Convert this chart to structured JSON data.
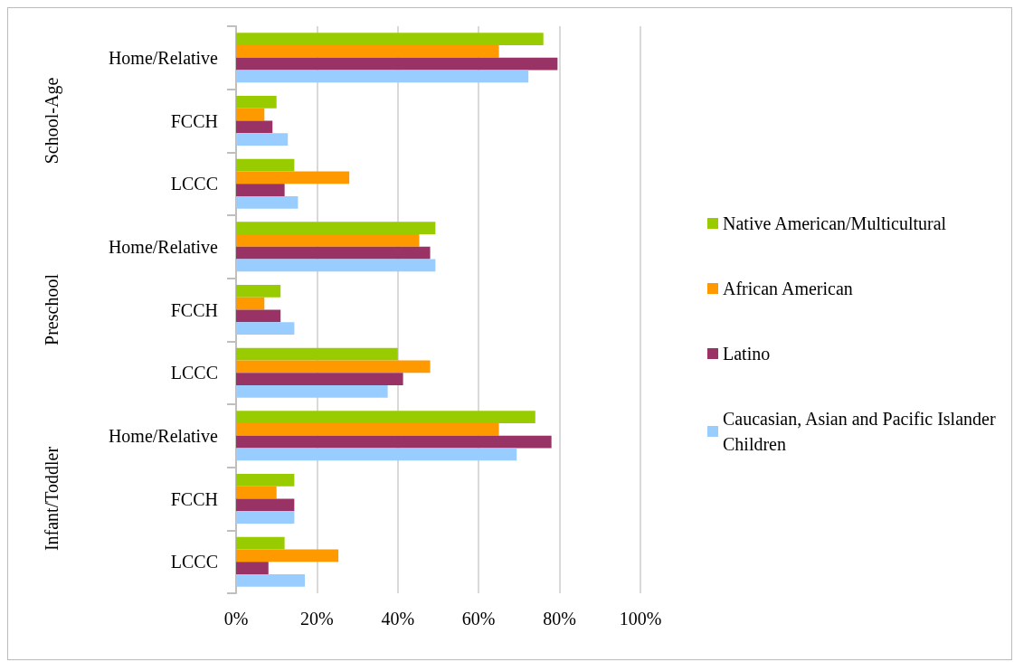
{
  "chart_data": {
    "type": "bar",
    "orientation": "horizontal",
    "categories": [
      "Home/Relative",
      "FCCH",
      "LCCC",
      "Home/Relative",
      "FCCH",
      "LCCC",
      "Home/Relative",
      "FCCH",
      "LCCC"
    ],
    "series": [
      {
        "name": "Native American/Multicultural",
        "color": "#99cc00",
        "values": [
          76,
          10,
          14.4,
          49.3,
          11,
          40,
          74,
          14.4,
          12
        ]
      },
      {
        "name": "African American",
        "color": "#ff9900",
        "values": [
          65,
          7,
          28,
          45.3,
          7,
          48,
          65,
          10,
          25.3
        ]
      },
      {
        "name": "Latino",
        "color": "#993366",
        "values": [
          79.5,
          9,
          12,
          48,
          11,
          41.3,
          78,
          14.4,
          8
        ]
      },
      {
        "name": "Caucasian, Asian and Pacific Islander Children",
        "color": "#99ccff",
        "values": [
          72.3,
          12.8,
          15.3,
          49.3,
          14.4,
          37.5,
          69.4,
          14.4,
          17
        ]
      }
    ],
    "annotations": [
      "School-Age",
      "Preschool",
      "Infant/Toddler"
    ],
    "xlim": [
      0,
      100
    ],
    "xticks": [
      {
        "value": 0,
        "label": "0%"
      },
      {
        "value": 20,
        "label": "20%"
      },
      {
        "value": 40,
        "label": "40%"
      },
      {
        "value": 60,
        "label": "60%"
      },
      {
        "value": 80,
        "label": "80%"
      },
      {
        "value": 100,
        "label": "100%"
      }
    ],
    "grid": "x",
    "legend": "right"
  }
}
